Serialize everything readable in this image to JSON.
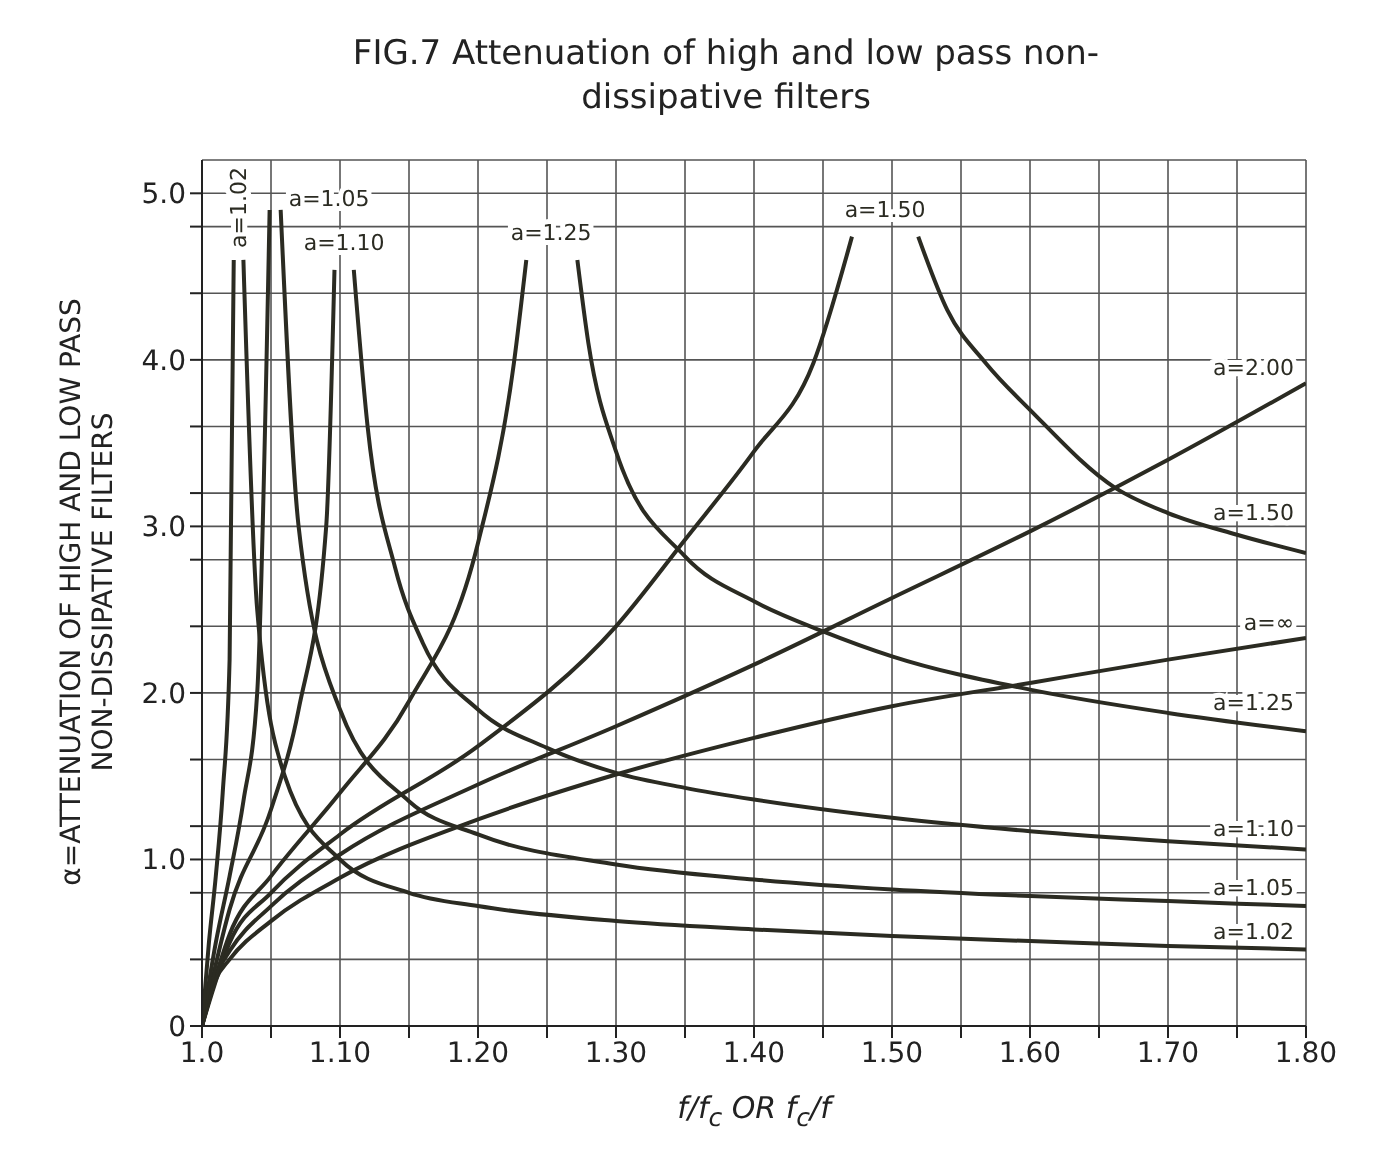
{
  "chart_data": {
    "type": "line",
    "title": "FIG.7 Attenuation of high and low pass non-dissipative filters",
    "xlabel": "f/f$_{c}$ OR f$_{c}$/f",
    "ylabel": "α=ATTENUATION OF HIGH AND LOW PASS NON-DISSIPATIVE FILTERS",
    "xlim": [
      1.0,
      1.8
    ],
    "xticks": [
      {
        "value": 1.0,
        "label": "1.0"
      },
      {
        "value": 1.05,
        "label": null
      },
      {
        "value": 1.1,
        "label": "1.10"
      },
      {
        "value": 1.15,
        "label": null
      },
      {
        "value": 1.2,
        "label": "1.20"
      },
      {
        "value": 1.25,
        "label": null
      },
      {
        "value": 1.3,
        "label": "1.30"
      },
      {
        "value": 1.35,
        "label": null
      },
      {
        "value": 1.4,
        "label": "1.40"
      },
      {
        "value": 1.45,
        "label": null
      },
      {
        "value": 1.5,
        "label": "1.50"
      },
      {
        "value": 1.55,
        "label": null
      },
      {
        "value": 1.6,
        "label": "1.60"
      },
      {
        "value": 1.65,
        "label": null
      },
      {
        "value": 1.7,
        "label": "1.70"
      },
      {
        "value": 1.75,
        "label": null
      },
      {
        "value": 1.8,
        "label": "1.80"
      }
    ],
    "ylim": [
      0,
      5.2
    ],
    "yticks": [
      0,
      {
        "value": 0.4,
        "label": null
      },
      {
        "value": 0.8,
        "label": null
      },
      {
        "value": 1,
        "label": "1.0"
      },
      {
        "value": 1.2,
        "label": null
      },
      {
        "value": 1.6,
        "label": null
      },
      {
        "value": 2,
        "label": "2.0"
      },
      {
        "value": 2.4,
        "label": null
      },
      {
        "value": 2.8,
        "label": null
      },
      {
        "value": 3,
        "label": "3.0"
      },
      {
        "value": 3.2,
        "label": null
      },
      {
        "value": 3.6,
        "label": null
      },
      {
        "value": 4,
        "label": "4.0"
      },
      {
        "value": 4.4,
        "label": null
      },
      {
        "value": 4.8,
        "label": null
      },
      {
        "value": 5,
        "label": "5.0"
      }
    ],
    "grid": true,
    "legend": false,
    "series": [
      {
        "name": "a=2.00",
        "color": "#2b2b22",
        "x": [
          1.0,
          1.01,
          1.02,
          1.05,
          1.1,
          1.2,
          1.3,
          1.4,
          1.5,
          1.6,
          1.7,
          1.8
        ],
        "values": [
          0,
          0.3,
          0.45,
          0.72,
          1.03,
          1.45,
          1.8,
          2.17,
          2.57,
          2.97,
          3.4,
          3.86
        ]
      },
      {
        "name": "a=∞",
        "color": "#2b2b22",
        "x": [
          1.0,
          1.01,
          1.02,
          1.05,
          1.1,
          1.2,
          1.3,
          1.4,
          1.5,
          1.6,
          1.7,
          1.8
        ],
        "values": [
          0,
          0.28,
          0.4,
          0.63,
          0.89,
          1.24,
          1.51,
          1.73,
          1.92,
          2.06,
          2.2,
          2.33
        ]
      },
      {
        "name": "a=1.50",
        "color": "#2b2b22",
        "x": [
          1.0,
          1.02,
          1.05,
          1.1,
          1.2,
          1.3,
          1.35,
          1.4,
          1.443,
          1.471,
          1.495,
          1.519,
          1.54,
          1.568,
          1.6,
          1.662,
          1.7,
          1.75,
          1.8
        ],
        "values": [
          0,
          0.5,
          0.8,
          1.15,
          1.68,
          2.4,
          2.92,
          3.45,
          3.98,
          4.74,
          null,
          4.74,
          4.3,
          3.98,
          3.7,
          3.23,
          3.08,
          2.95,
          2.84
        ]
      },
      {
        "name": "a=1.25",
        "color": "#2b2b22",
        "x": [
          1.0,
          1.02,
          1.05,
          1.1,
          1.15,
          1.2,
          1.226,
          1.235,
          1.253,
          1.272,
          1.28,
          1.3,
          1.35,
          1.4,
          1.45,
          1.5,
          1.6,
          1.7,
          1.8
        ],
        "values": [
          0,
          0.55,
          0.9,
          1.4,
          1.95,
          2.9,
          3.98,
          4.6,
          null,
          4.6,
          4.1,
          3.45,
          2.82,
          2.55,
          2.37,
          2.22,
          2.02,
          1.88,
          1.77
        ]
      },
      {
        "name": "a=1.10",
        "color": "#2b2b22",
        "x": [
          1.0,
          1.02,
          1.05,
          1.07,
          1.09,
          1.096,
          1.103,
          1.11,
          1.12,
          1.14,
          1.16,
          1.2,
          1.25,
          1.3,
          1.35,
          1.4,
          1.5,
          1.6,
          1.7,
          1.8
        ],
        "values": [
          0,
          0.7,
          1.3,
          1.9,
          3.0,
          4.54,
          null,
          4.54,
          3.6,
          2.75,
          2.3,
          1.9,
          1.67,
          1.52,
          1.43,
          1.36,
          1.25,
          1.17,
          1.11,
          1.06
        ]
      },
      {
        "name": "a=1.05",
        "color": "#2b2b22",
        "x": [
          1.0,
          1.01,
          1.02,
          1.03,
          1.04,
          1.049,
          1.053,
          1.057,
          1.07,
          1.1,
          1.15,
          1.2,
          1.3,
          1.4,
          1.5,
          1.6,
          1.7,
          1.8
        ],
        "values": [
          0,
          0.5,
          0.9,
          1.35,
          2.0,
          4.9,
          null,
          4.9,
          3.0,
          1.9,
          1.35,
          1.15,
          0.97,
          0.88,
          0.82,
          0.78,
          0.75,
          0.72
        ]
      },
      {
        "name": "a=1.02",
        "color": "#2b2b22",
        "x": [
          1.0,
          1.005,
          1.01,
          1.015,
          1.02,
          1.023,
          1.026,
          1.03,
          1.04,
          1.06,
          1.1,
          1.15,
          1.2,
          1.3,
          1.4,
          1.5,
          1.6,
          1.7,
          1.8
        ],
        "values": [
          0,
          0.5,
          0.9,
          1.4,
          2.2,
          4.6,
          null,
          4.6,
          2.5,
          1.5,
          1.0,
          0.8,
          0.72,
          0.63,
          0.58,
          0.54,
          0.51,
          0.48,
          0.46
        ]
      }
    ]
  }
}
